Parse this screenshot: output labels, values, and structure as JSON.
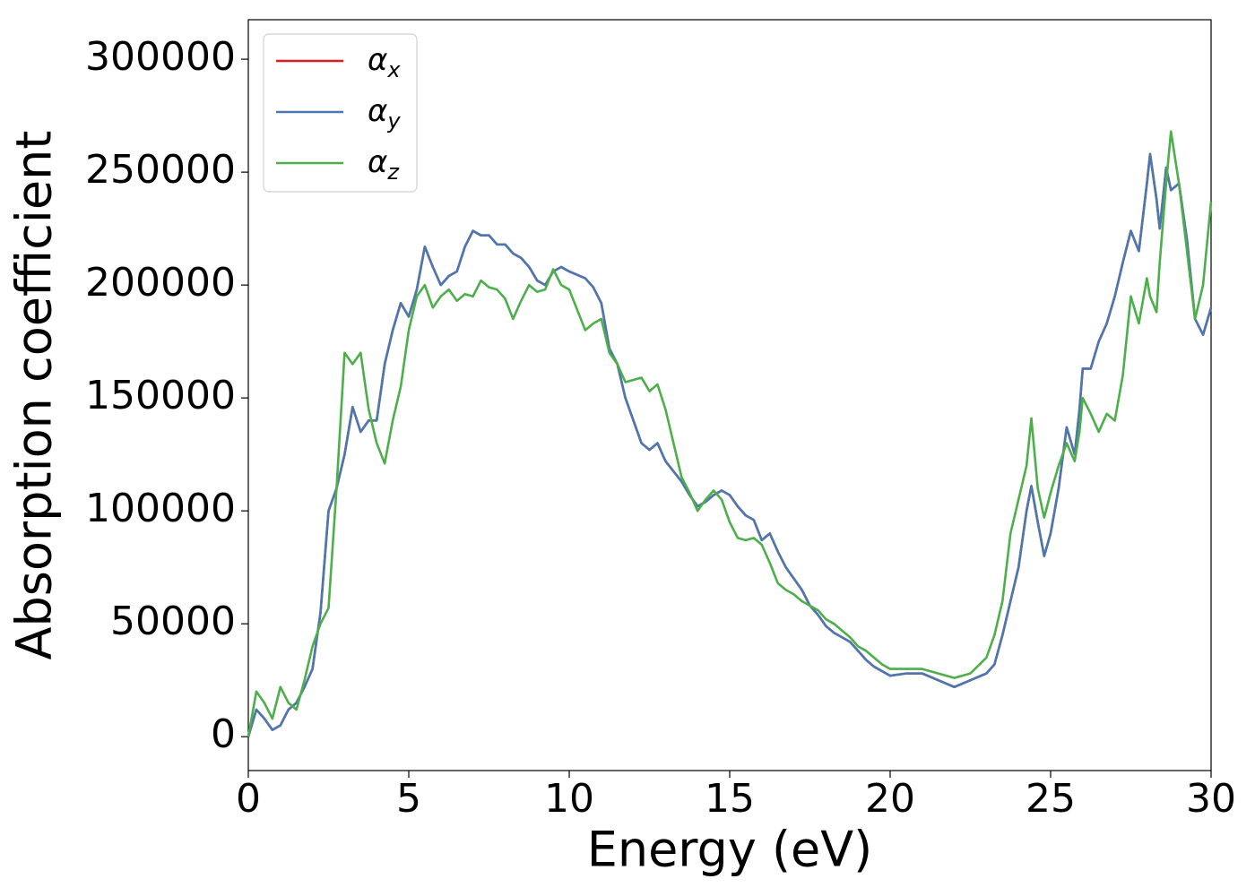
{
  "chart_data": {
    "type": "line",
    "xlabel": "Energy (eV)",
    "ylabel": "Absorption coefficient",
    "x": [
      0,
      0.25,
      0.5,
      0.75,
      1.0,
      1.25,
      1.5,
      1.75,
      2.0,
      2.25,
      2.5,
      2.75,
      3.0,
      3.25,
      3.5,
      3.75,
      4.0,
      4.25,
      4.5,
      4.75,
      5.0,
      5.25,
      5.5,
      5.75,
      6.0,
      6.25,
      6.5,
      6.75,
      7.0,
      7.25,
      7.5,
      7.75,
      8.0,
      8.25,
      8.5,
      8.75,
      9.0,
      9.25,
      9.5,
      9.75,
      10.0,
      10.5,
      10.75,
      11.0,
      11.25,
      11.5,
      11.75,
      12.0,
      12.25,
      12.5,
      12.75,
      13.0,
      13.5,
      13.75,
      14.0,
      14.25,
      14.5,
      14.75,
      15.0,
      15.25,
      15.5,
      15.75,
      16.0,
      16.25,
      16.5,
      16.75,
      17.0,
      17.25,
      17.5,
      17.75,
      18.0,
      18.25,
      18.5,
      18.75,
      19.0,
      19.25,
      19.5,
      19.75,
      20.0,
      20.5,
      21.0,
      21.5,
      22.0,
      22.5,
      23.0,
      23.25,
      23.5,
      23.75,
      24.0,
      24.25,
      24.4,
      24.6,
      24.8,
      25.0,
      25.25,
      25.5,
      25.75,
      25.9,
      26.0,
      26.25,
      26.5,
      26.75,
      27.0,
      27.25,
      27.5,
      27.75,
      28.0,
      28.1,
      28.3,
      28.4,
      28.6,
      28.75,
      29.0,
      29.25,
      29.5,
      29.75,
      30.0
    ],
    "series": [
      {
        "name": "αx",
        "color": "#e41a1c",
        "values": [
          0,
          12000,
          8000,
          3000,
          5000,
          12000,
          15000,
          22000,
          30000,
          55000,
          100000,
          110000,
          125000,
          146000,
          135000,
          140000,
          140000,
          165000,
          180000,
          192000,
          186000,
          198000,
          217000,
          208000,
          200000,
          204000,
          206000,
          217000,
          224000,
          222000,
          222000,
          218000,
          218000,
          214000,
          212000,
          208000,
          202000,
          200000,
          206000,
          208000,
          206000,
          203000,
          199000,
          192000,
          172000,
          165000,
          150000,
          140000,
          130000,
          127000,
          130000,
          122000,
          113000,
          107000,
          102000,
          104000,
          107000,
          109000,
          107000,
          102000,
          98000,
          96000,
          87000,
          90000,
          82000,
          75000,
          70000,
          65000,
          58000,
          54000,
          49000,
          46000,
          44000,
          42000,
          38000,
          34000,
          31000,
          29000,
          27000,
          28000,
          28000,
          25000,
          22000,
          25000,
          28000,
          32000,
          45000,
          60000,
          75000,
          100000,
          111000,
          95000,
          80000,
          90000,
          110000,
          137000,
          125000,
          145000,
          163000,
          163000,
          175000,
          183000,
          195000,
          210000,
          224000,
          215000,
          245000,
          258000,
          238000,
          225000,
          252000,
          242000,
          245000,
          220000,
          185000,
          178000,
          190000
        ]
      },
      {
        "name": "αy",
        "color": "#4a78b0",
        "values": [
          0,
          12000,
          8000,
          3000,
          5000,
          12000,
          15000,
          22000,
          30000,
          55000,
          100000,
          110000,
          125000,
          146000,
          135000,
          140000,
          140000,
          165000,
          180000,
          192000,
          186000,
          198000,
          217000,
          208000,
          200000,
          204000,
          206000,
          217000,
          224000,
          222000,
          222000,
          218000,
          218000,
          214000,
          212000,
          208000,
          202000,
          200000,
          206000,
          208000,
          206000,
          203000,
          199000,
          192000,
          172000,
          165000,
          150000,
          140000,
          130000,
          127000,
          130000,
          122000,
          113000,
          107000,
          102000,
          104000,
          107000,
          109000,
          107000,
          102000,
          98000,
          96000,
          87000,
          90000,
          82000,
          75000,
          70000,
          65000,
          58000,
          54000,
          49000,
          46000,
          44000,
          42000,
          38000,
          34000,
          31000,
          29000,
          27000,
          28000,
          28000,
          25000,
          22000,
          25000,
          28000,
          32000,
          45000,
          60000,
          75000,
          100000,
          111000,
          95000,
          80000,
          90000,
          110000,
          137000,
          125000,
          145000,
          163000,
          163000,
          175000,
          183000,
          195000,
          210000,
          224000,
          215000,
          245000,
          258000,
          238000,
          225000,
          252000,
          242000,
          245000,
          220000,
          185000,
          178000,
          190000
        ]
      },
      {
        "name": "αz",
        "color": "#4daf4a",
        "values": [
          0,
          20000,
          15000,
          8000,
          22000,
          15000,
          12000,
          25000,
          40000,
          50000,
          57000,
          110000,
          170000,
          165000,
          170000,
          145000,
          130000,
          121000,
          140000,
          155000,
          180000,
          195000,
          200000,
          190000,
          195000,
          198000,
          193000,
          196000,
          195000,
          202000,
          199000,
          198000,
          194000,
          185000,
          193000,
          200000,
          197000,
          198000,
          207000,
          200000,
          198000,
          180000,
          183000,
          185000,
          170000,
          165000,
          157000,
          158000,
          159000,
          153000,
          156000,
          145000,
          115000,
          108000,
          100000,
          105000,
          109000,
          105000,
          95000,
          88000,
          87000,
          88000,
          85000,
          77000,
          68000,
          65000,
          63000,
          60000,
          58000,
          56000,
          52000,
          50000,
          47000,
          44000,
          40000,
          38000,
          35000,
          32000,
          30000,
          30000,
          30000,
          28000,
          26000,
          28000,
          35000,
          45000,
          60000,
          90000,
          105000,
          120000,
          141000,
          110000,
          97000,
          108000,
          120000,
          130000,
          122000,
          135000,
          150000,
          143000,
          135000,
          143000,
          140000,
          160000,
          195000,
          183000,
          203000,
          195000,
          188000,
          210000,
          245000,
          268000,
          245000,
          215000,
          185000,
          200000,
          237000
        ]
      }
    ],
    "xlim": [
      0,
      30
    ],
    "xticks": [
      0,
      5,
      10,
      15,
      20,
      25,
      30
    ],
    "ylim": [
      -15000,
      317500
    ],
    "yticks": [
      0,
      50000,
      100000,
      150000,
      200000,
      250000,
      300000
    ],
    "legend": "upper left"
  }
}
